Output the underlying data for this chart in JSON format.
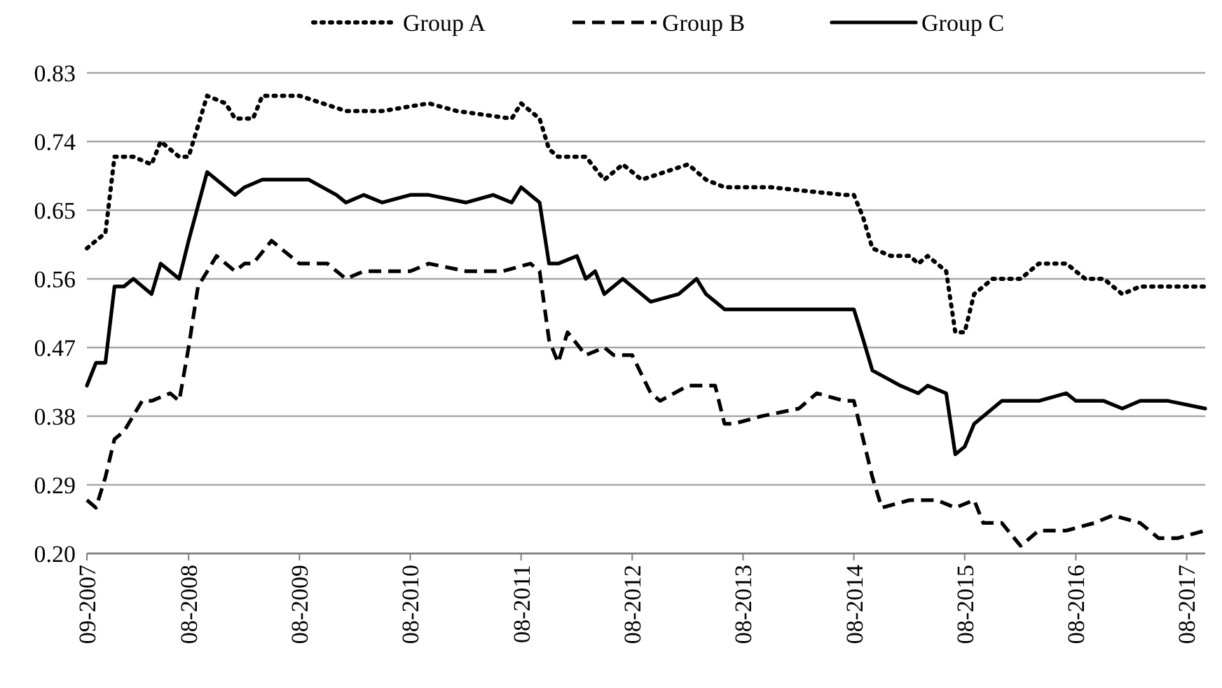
{
  "chart_data": {
    "type": "line",
    "legend": "top",
    "grid": "y",
    "xlim": [
      "2007-09",
      "2017-10"
    ],
    "xticks": [
      {
        "value": "2007-09",
        "label": "09-2007"
      },
      {
        "value": "2008-08",
        "label": "08-2008"
      },
      {
        "value": "2009-08",
        "label": "08-2009"
      },
      {
        "value": "2010-08",
        "label": "08-2010"
      },
      {
        "value": "2011-08",
        "label": "08-2011"
      },
      {
        "value": "2012-08",
        "label": "08-2012"
      },
      {
        "value": "2013-08",
        "label": "08-2013"
      },
      {
        "value": "2014-08",
        "label": "08-2014"
      },
      {
        "value": "2015-08",
        "label": "08-2015"
      },
      {
        "value": "2016-08",
        "label": "08-2016"
      },
      {
        "value": "2017-08",
        "label": "08-2017"
      }
    ],
    "ylim": [
      0.2,
      0.83
    ],
    "yticks": [
      {
        "value": 0.2,
        "label": "0.20"
      },
      0.29,
      0.38,
      0.47,
      0.56,
      0.65,
      0.74,
      0.83
    ],
    "series": [
      {
        "name": "Group A",
        "color": "#000000",
        "line_style": "dotted",
        "x": [
          "2007-09",
          "2007-10",
          "2007-11",
          "2007-12",
          "2008-02",
          "2008-04",
          "2008-05",
          "2008-07",
          "2008-08",
          "2008-10",
          "2008-12",
          "2009-01",
          "2009-03",
          "2009-04",
          "2009-08",
          "2010-01",
          "2010-05",
          "2010-10",
          "2011-01",
          "2011-07",
          "2011-08",
          "2011-10",
          "2011-11",
          "2011-12",
          "2012-03",
          "2012-05",
          "2012-07",
          "2012-09",
          "2013-02",
          "2013-04",
          "2013-06",
          "2013-11",
          "2014-07",
          "2014-08",
          "2014-09",
          "2014-10",
          "2014-12",
          "2015-02",
          "2015-03",
          "2015-04",
          "2015-06",
          "2015-07",
          "2015-08",
          "2015-09",
          "2015-11",
          "2016-02",
          "2016-04",
          "2016-06",
          "2016-07",
          "2016-09",
          "2016-11",
          "2017-01",
          "2017-03",
          "2017-07",
          "2017-10"
        ],
        "values": [
          0.6,
          0.61,
          0.62,
          0.72,
          0.72,
          0.71,
          0.74,
          0.72,
          0.72,
          0.8,
          0.79,
          0.77,
          0.77,
          0.8,
          0.8,
          0.78,
          0.78,
          0.79,
          0.78,
          0.77,
          0.79,
          0.77,
          0.73,
          0.72,
          0.72,
          0.69,
          0.71,
          0.69,
          0.71,
          0.69,
          0.68,
          0.68,
          0.67,
          0.67,
          0.64,
          0.6,
          0.59,
          0.59,
          0.58,
          0.59,
          0.57,
          0.49,
          0.49,
          0.54,
          0.56,
          0.56,
          0.58,
          0.58,
          0.58,
          0.56,
          0.56,
          0.54,
          0.55,
          0.55,
          0.55
        ]
      },
      {
        "name": "Group B",
        "color": "#000000",
        "line_style": "dashed",
        "x": [
          "2007-09",
          "2007-10",
          "2007-11",
          "2007-12",
          "2008-01",
          "2008-03",
          "2008-04",
          "2008-06",
          "2008-07",
          "2008-08",
          "2008-09",
          "2008-11",
          "2009-01",
          "2009-02",
          "2009-03",
          "2009-05",
          "2009-08",
          "2009-11",
          "2010-01",
          "2010-03",
          "2010-08",
          "2010-10",
          "2011-02",
          "2011-06",
          "2011-09",
          "2011-10",
          "2011-11",
          "2011-12",
          "2012-01",
          "2012-03",
          "2012-05",
          "2012-06",
          "2012-08",
          "2012-10",
          "2012-11",
          "2013-02",
          "2013-05",
          "2013-06",
          "2013-07",
          "2013-10",
          "2014-02",
          "2014-04",
          "2014-07",
          "2014-08",
          "2014-10",
          "2014-11",
          "2015-02",
          "2015-05",
          "2015-07",
          "2015-09",
          "2015-10",
          "2015-12",
          "2016-02",
          "2016-04",
          "2016-07",
          "2016-10",
          "2016-12",
          "2017-03",
          "2017-05",
          "2017-07",
          "2017-10"
        ],
        "values": [
          0.27,
          0.26,
          0.3,
          0.35,
          0.36,
          0.4,
          0.4,
          0.41,
          0.4,
          0.47,
          0.55,
          0.59,
          0.57,
          0.58,
          0.58,
          0.61,
          0.58,
          0.58,
          0.56,
          0.57,
          0.57,
          0.58,
          0.57,
          0.57,
          0.58,
          0.57,
          0.48,
          0.45,
          0.49,
          0.46,
          0.47,
          0.46,
          0.46,
          0.41,
          0.4,
          0.42,
          0.42,
          0.37,
          0.37,
          0.38,
          0.39,
          0.41,
          0.4,
          0.4,
          0.3,
          0.26,
          0.27,
          0.27,
          0.26,
          0.27,
          0.24,
          0.24,
          0.21,
          0.23,
          0.23,
          0.24,
          0.25,
          0.24,
          0.22,
          0.22,
          0.23
        ]
      },
      {
        "name": "Group C",
        "color": "#000000",
        "line_style": "solid",
        "x": [
          "2007-09",
          "2007-10",
          "2007-11",
          "2007-12",
          "2008-01",
          "2008-02",
          "2008-04",
          "2008-05",
          "2008-07",
          "2008-08",
          "2008-10",
          "2008-11",
          "2009-01",
          "2009-02",
          "2009-04",
          "2009-09",
          "2009-12",
          "2010-01",
          "2010-03",
          "2010-05",
          "2010-08",
          "2010-10",
          "2011-02",
          "2011-05",
          "2011-07",
          "2011-08",
          "2011-10",
          "2011-11",
          "2011-12",
          "2012-02",
          "2012-03",
          "2012-04",
          "2012-05",
          "2012-07",
          "2012-10",
          "2013-01",
          "2013-03",
          "2013-04",
          "2013-06",
          "2013-10",
          "2014-02",
          "2014-07",
          "2014-08",
          "2014-09",
          "2014-10",
          "2015-01",
          "2015-03",
          "2015-04",
          "2015-06",
          "2015-07",
          "2015-08",
          "2015-09",
          "2015-12",
          "2016-04",
          "2016-07",
          "2016-08",
          "2016-11",
          "2017-01",
          "2017-03",
          "2017-06",
          "2017-10"
        ],
        "values": [
          0.42,
          0.45,
          0.45,
          0.55,
          0.55,
          0.56,
          0.54,
          0.58,
          0.56,
          0.61,
          0.7,
          0.69,
          0.67,
          0.68,
          0.69,
          0.69,
          0.67,
          0.66,
          0.67,
          0.66,
          0.67,
          0.67,
          0.66,
          0.67,
          0.66,
          0.68,
          0.66,
          0.58,
          0.58,
          0.59,
          0.56,
          0.57,
          0.54,
          0.56,
          0.53,
          0.54,
          0.56,
          0.54,
          0.52,
          0.52,
          0.52,
          0.52,
          0.52,
          0.48,
          0.44,
          0.42,
          0.41,
          0.42,
          0.41,
          0.33,
          0.34,
          0.37,
          0.4,
          0.4,
          0.41,
          0.4,
          0.4,
          0.39,
          0.4,
          0.4,
          0.39
        ]
      }
    ]
  }
}
